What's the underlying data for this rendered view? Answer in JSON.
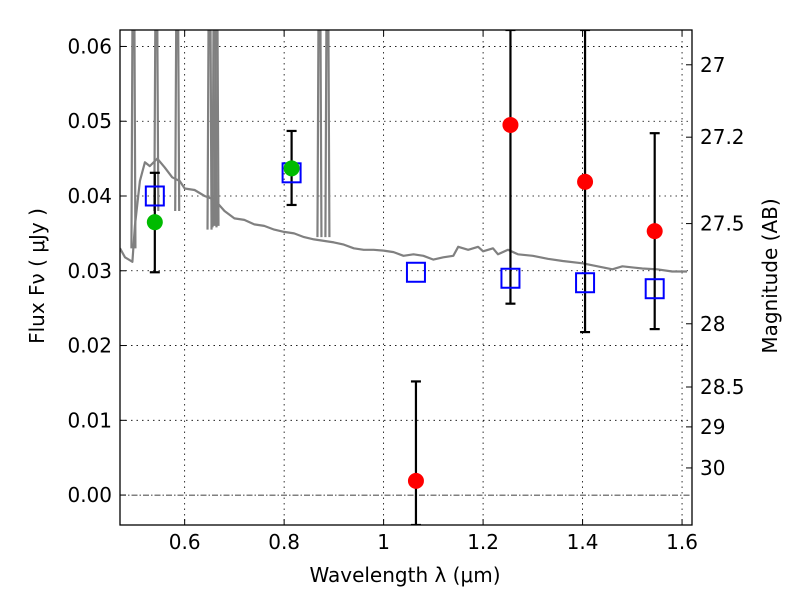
{
  "chart_data": {
    "type": "scatter",
    "title": "",
    "xlabel": "Wavelength  λ (μm)",
    "ylabel": "Flux  Fν  ( μJy )",
    "ylabel_right": "Magnitude (AB)",
    "xlim": [
      0.47,
      1.62
    ],
    "ylim": [
      -0.004,
      0.0622
    ],
    "grid": true,
    "legend": "none",
    "x_ticks": [
      0.6,
      0.8,
      1.0,
      1.2,
      1.4,
      1.6
    ],
    "x_tick_labels": [
      "0.6",
      "0.8",
      "1",
      "1.2",
      "1.4",
      "1.6"
    ],
    "y_ticks": [
      0.0,
      0.01,
      0.02,
      0.03,
      0.04,
      0.05,
      0.06
    ],
    "y_tick_labels": [
      "0.00",
      "0.01",
      "0.02",
      "0.03",
      "0.04",
      "0.05",
      "0.06"
    ],
    "mag_ticks": [
      27,
      27.2,
      27.5,
      28,
      28.5,
      29,
      30
    ],
    "mag_tick_labels": [
      "27",
      "27.2",
      "27.5",
      "28",
      "28.5",
      "29",
      "30"
    ],
    "zero_line": 0.0,
    "series": [
      {
        "name": "model-spectrum",
        "kind": "line",
        "color": "#808080",
        "points": [
          [
            0.47,
            0.033
          ],
          [
            0.48,
            0.0318
          ],
          [
            0.495,
            0.0312
          ],
          [
            0.5,
            0.036
          ],
          [
            0.51,
            0.042
          ],
          [
            0.52,
            0.0445
          ],
          [
            0.53,
            0.044
          ],
          [
            0.545,
            0.045
          ],
          [
            0.56,
            0.0438
          ],
          [
            0.575,
            0.0425
          ],
          [
            0.59,
            0.042
          ],
          [
            0.6,
            0.041
          ],
          [
            0.62,
            0.0408
          ],
          [
            0.64,
            0.04
          ],
          [
            0.66,
            0.0395
          ],
          [
            0.68,
            0.038
          ],
          [
            0.7,
            0.037
          ],
          [
            0.72,
            0.0368
          ],
          [
            0.74,
            0.0362
          ],
          [
            0.76,
            0.036
          ],
          [
            0.78,
            0.0355
          ],
          [
            0.8,
            0.0352
          ],
          [
            0.82,
            0.035
          ],
          [
            0.84,
            0.0345
          ],
          [
            0.86,
            0.0342
          ],
          [
            0.88,
            0.034
          ],
          [
            0.9,
            0.0338
          ],
          [
            0.92,
            0.0335
          ],
          [
            0.94,
            0.033
          ],
          [
            0.96,
            0.0328
          ],
          [
            0.98,
            0.0328
          ],
          [
            1.0,
            0.0327
          ],
          [
            1.02,
            0.0325
          ],
          [
            1.04,
            0.032
          ],
          [
            1.06,
            0.0322
          ],
          [
            1.08,
            0.032
          ],
          [
            1.1,
            0.0315
          ],
          [
            1.12,
            0.0318
          ],
          [
            1.14,
            0.032
          ],
          [
            1.15,
            0.0332
          ],
          [
            1.17,
            0.0328
          ],
          [
            1.19,
            0.0332
          ],
          [
            1.2,
            0.0326
          ],
          [
            1.22,
            0.033
          ],
          [
            1.23,
            0.0322
          ],
          [
            1.25,
            0.0328
          ],
          [
            1.27,
            0.0322
          ],
          [
            1.3,
            0.032
          ],
          [
            1.33,
            0.0316
          ],
          [
            1.36,
            0.0313
          ],
          [
            1.4,
            0.031
          ],
          [
            1.43,
            0.0306
          ],
          [
            1.46,
            0.0302
          ],
          [
            1.48,
            0.0306
          ],
          [
            1.52,
            0.0303
          ],
          [
            1.55,
            0.0302
          ],
          [
            1.58,
            0.0299
          ],
          [
            1.61,
            0.0299
          ]
        ],
        "emission_spikes": [
          [
            0.497,
            0.033
          ],
          [
            0.543,
            0.038
          ],
          [
            0.585,
            0.038
          ],
          [
            0.65,
            0.0355
          ],
          [
            0.66,
            0.0358
          ],
          [
            0.664,
            0.036
          ],
          [
            0.871,
            0.0345
          ],
          [
            0.887,
            0.0345
          ]
        ]
      },
      {
        "name": "model-photometry",
        "kind": "open-square",
        "color": "#0000ff",
        "x": [
          0.54,
          0.815,
          1.065,
          1.255,
          1.405,
          1.545
        ],
        "y": [
          0.04,
          0.0431,
          0.0298,
          0.029,
          0.0284,
          0.0276
        ]
      },
      {
        "name": "detections",
        "kind": "filled-circle",
        "color": "#00bb00",
        "x": [
          0.54,
          0.815
        ],
        "y": [
          0.0365,
          0.0437
        ],
        "yerr_low": [
          0.0298,
          0.0388
        ],
        "yerr_high": [
          0.0431,
          0.0487
        ]
      },
      {
        "name": "non-detections",
        "kind": "filled-circle",
        "color": "#ff0000",
        "x": [
          1.065,
          1.255,
          1.405,
          1.545
        ],
        "y": [
          0.0019,
          0.0495,
          0.0419,
          0.0353
        ],
        "yerr_low": [
          -0.004,
          0.0256,
          0.0218,
          0.0222
        ],
        "yerr_high": [
          0.0152,
          0.0622,
          0.0622,
          0.0484
        ]
      }
    ]
  }
}
